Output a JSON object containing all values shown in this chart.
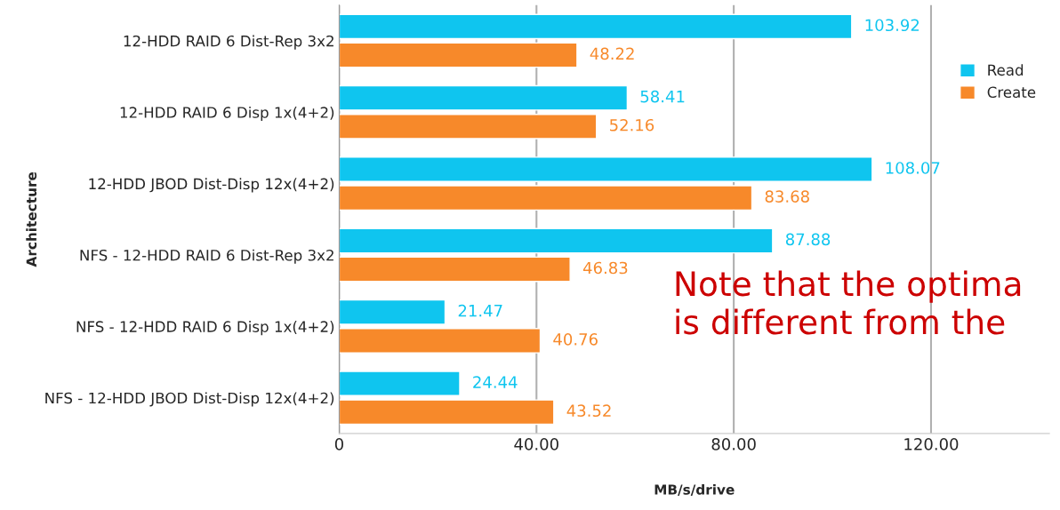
{
  "chart_data": {
    "type": "bar",
    "orientation": "horizontal",
    "xlabel": "MB/s/drive",
    "ylabel": "Architecture",
    "categories": [
      "12-HDD RAID 6 Dist-Rep 3x2",
      "12-HDD RAID 6 Disp 1x(4+2)",
      "12-HDD JBOD Dist-Disp 12x(4+2)",
      "NFS - 12-HDD RAID 6 Dist-Rep 3x2",
      "NFS - 12-HDD RAID 6 Disp 1x(4+2)",
      "NFS - 12-HDD JBOD Dist-Disp 12x(4+2)"
    ],
    "series": [
      {
        "name": "Read",
        "color": "#0fc5ef",
        "values": [
          103.92,
          58.41,
          108.07,
          87.88,
          21.47,
          24.44
        ]
      },
      {
        "name": "Create",
        "color": "#f7892a",
        "values": [
          48.22,
          52.16,
          83.68,
          46.83,
          40.76,
          43.52
        ]
      }
    ],
    "data_labels": true,
    "xlim": [
      0,
      144
    ],
    "xticks": [
      0,
      {
        "value": 40,
        "label": "40.00"
      },
      {
        "value": 80,
        "label": "80.00"
      },
      {
        "value": 120,
        "label": "120.00"
      }
    ],
    "grid": "x",
    "legend": "right",
    "annotations": [
      "Note that the optima",
      "is different from the"
    ]
  }
}
